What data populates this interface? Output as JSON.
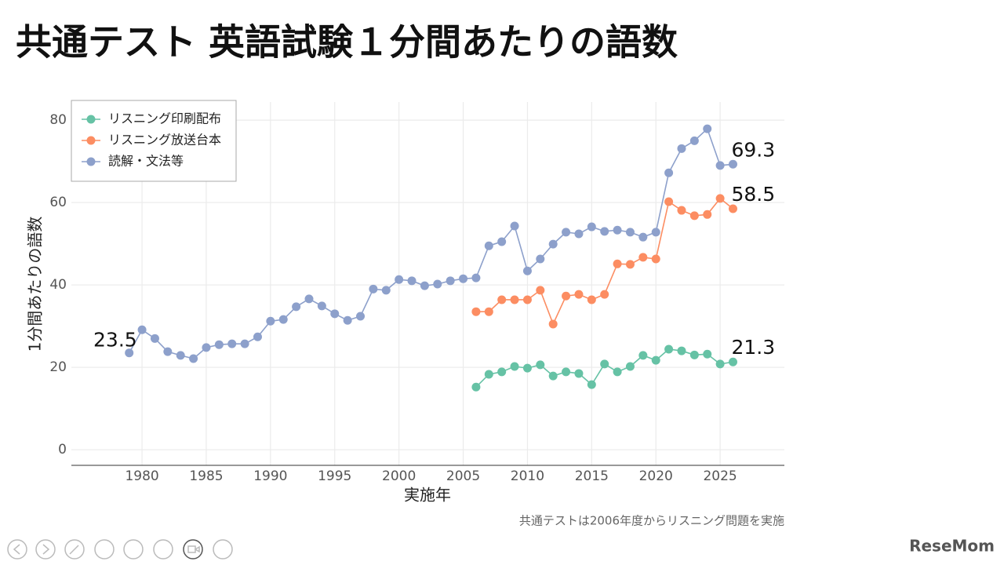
{
  "chart_data": {
    "type": "line",
    "title": "共通テスト 英語試験１分間あたりの語数",
    "x_label": "実施年",
    "y_label": "1分間あたりの語数",
    "caption": "共通テストは2006年度からリスニング問題を実施",
    "x": [
      1979,
      1980,
      1981,
      1982,
      1983,
      1984,
      1985,
      1986,
      1987,
      1988,
      1989,
      1990,
      1991,
      1992,
      1993,
      1994,
      1995,
      1996,
      1997,
      1998,
      1999,
      2000,
      2001,
      2002,
      2003,
      2004,
      2005,
      2006,
      2007,
      2008,
      2009,
      2010,
      2011,
      2012,
      2013,
      2014,
      2015,
      2016,
      2017,
      2018,
      2019,
      2020,
      2021,
      2022,
      2023,
      2024,
      2025,
      2026
    ],
    "series": [
      {
        "name": "リスニング印刷配布",
        "color": "#66c2a5",
        "values": [
          null,
          null,
          null,
          null,
          null,
          null,
          null,
          null,
          null,
          null,
          null,
          null,
          null,
          null,
          null,
          null,
          null,
          null,
          null,
          null,
          null,
          null,
          null,
          null,
          null,
          null,
          null,
          15.2,
          18.3,
          18.9,
          20.2,
          19.8,
          20.6,
          17.9,
          18.9,
          18.5,
          15.8,
          20.8,
          18.9,
          20.2,
          22.9,
          21.7,
          24.4,
          24.0,
          23.0,
          23.2,
          20.8,
          21.3
        ]
      },
      {
        "name": "リスニング放送台本",
        "color": "#fc8d62",
        "values": [
          null,
          null,
          null,
          null,
          null,
          null,
          null,
          null,
          null,
          null,
          null,
          null,
          null,
          null,
          null,
          null,
          null,
          null,
          null,
          null,
          null,
          null,
          null,
          null,
          null,
          null,
          null,
          33.5,
          33.5,
          36.4,
          36.4,
          36.4,
          38.7,
          30.5,
          37.3,
          37.7,
          36.4,
          37.7,
          45.1,
          45.0,
          46.7,
          46.3,
          60.2,
          58.1,
          56.8,
          57.1,
          61.0,
          58.5
        ]
      },
      {
        "name": "読解・文法等",
        "color": "#8da0cb",
        "values": [
          23.5,
          29.1,
          27.0,
          23.8,
          22.9,
          22.1,
          24.8,
          25.5,
          25.7,
          25.7,
          27.4,
          31.2,
          31.6,
          34.7,
          36.6,
          34.9,
          33.0,
          31.4,
          32.4,
          39.0,
          38.7,
          41.3,
          41.0,
          39.8,
          40.2,
          41.0,
          41.5,
          41.7,
          49.5,
          50.5,
          54.3,
          43.4,
          46.3,
          49.9,
          52.8,
          52.4,
          54.1,
          53.0,
          53.3,
          52.8,
          51.6,
          52.8,
          67.2,
          73.1,
          75.0,
          77.9,
          69.0,
          69.3
        ]
      }
    ],
    "xlim": [
      1974.5,
      2030
    ],
    "ylim": [
      -3.8,
      84.4
    ],
    "xticks": [
      1980,
      1985,
      1990,
      1995,
      2000,
      2005,
      2010,
      2015,
      2020,
      2025
    ],
    "yticks": [
      0,
      20,
      40,
      60,
      80
    ],
    "grid": true,
    "legend": "top-left"
  },
  "logo": "ReseMom"
}
